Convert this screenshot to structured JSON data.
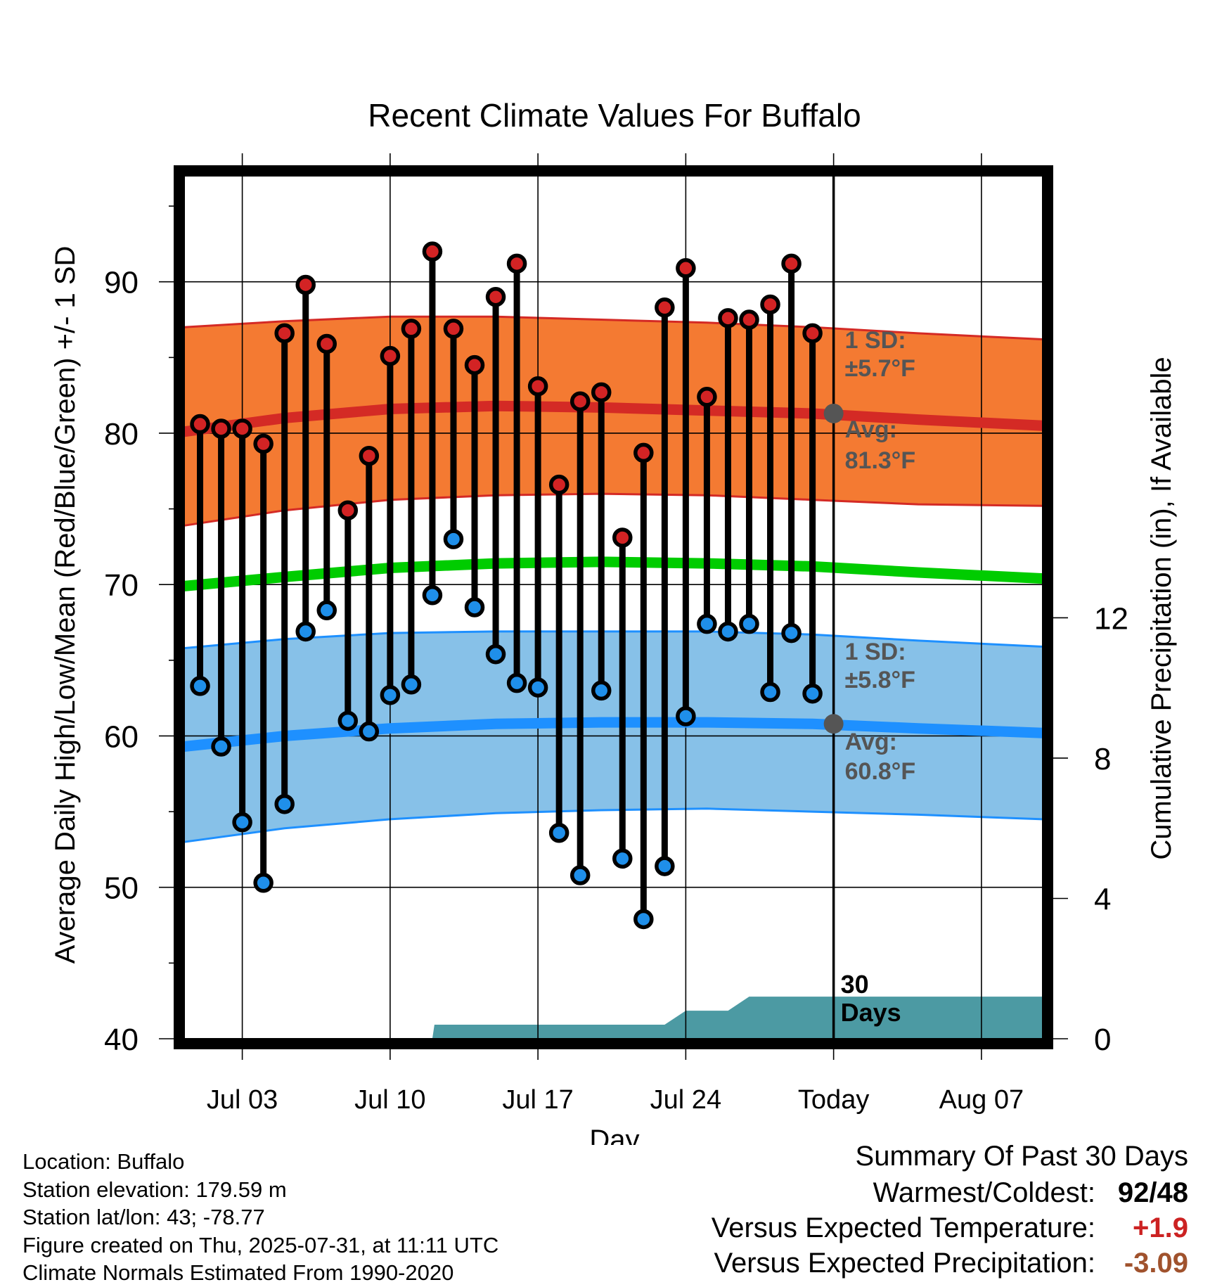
{
  "chart_data": {
    "type": "range",
    "title": "Recent Climate Values For Buffalo",
    "xlabel": "Day",
    "ylabel": "Average Daily High/Low/Mean (Red/Blue/Green) +/- 1 SD",
    "y2label": "Cumulative Precipitation (in), If Available",
    "xticks": [
      "Jul 03",
      "Jul 10",
      "Jul 17",
      "Jul 24",
      "Today",
      "Aug 07"
    ],
    "xtick_days": [
      3,
      10,
      17,
      24,
      31,
      38
    ],
    "xlim_days": [
      0.25,
      40.9
    ],
    "yticks": [
      40,
      50,
      60,
      70,
      80,
      90
    ],
    "ylim": [
      40,
      97
    ],
    "y2ticks": [
      0,
      4,
      8,
      12
    ],
    "y2lim": [
      0,
      24.6
    ],
    "today_day": 31,
    "grid": true,
    "days": [
      1,
      2,
      3,
      4,
      5,
      6,
      7,
      8,
      9,
      10,
      11,
      12,
      13,
      14,
      15,
      16,
      17,
      18,
      19,
      20,
      21,
      22,
      23,
      24,
      25,
      26,
      27,
      28,
      29,
      30
    ],
    "highs": [
      80.6,
      80.3,
      80.3,
      79.3,
      86.6,
      89.8,
      85.9,
      74.9,
      78.5,
      85.1,
      86.9,
      92.0,
      86.9,
      84.5,
      89.0,
      91.2,
      83.1,
      76.6,
      82.1,
      82.7,
      73.1,
      78.7,
      88.3,
      90.9,
      82.4,
      87.6,
      87.5,
      88.5,
      91.2,
      86.6
    ],
    "lows": [
      63.3,
      59.3,
      54.3,
      50.3,
      55.5,
      66.9,
      68.3,
      61.0,
      60.3,
      62.7,
      63.4,
      69.3,
      73.0,
      68.5,
      65.4,
      63.5,
      63.2,
      53.6,
      50.8,
      63.0,
      51.9,
      47.9,
      51.4,
      61.3,
      67.4,
      66.9,
      67.4,
      62.9,
      66.8,
      62.8
    ],
    "normals_x": [
      0.25,
      5,
      10,
      15,
      20,
      25,
      30,
      35,
      40.9
    ],
    "normal_high": [
      80.1,
      81.0,
      81.6,
      81.8,
      81.7,
      81.5,
      81.3,
      80.9,
      80.5
    ],
    "normal_high_sd_lower": [
      73.9,
      74.9,
      75.6,
      75.9,
      76.0,
      75.9,
      75.6,
      75.3,
      75.2
    ],
    "normal_high_sd_upper": [
      87.0,
      87.4,
      87.7,
      87.7,
      87.5,
      87.3,
      87.0,
      86.6,
      86.2
    ],
    "normal_mean": [
      69.9,
      70.5,
      71.1,
      71.4,
      71.5,
      71.4,
      71.2,
      70.8,
      70.4
    ],
    "normal_low": [
      59.3,
      60.0,
      60.5,
      60.8,
      60.9,
      60.9,
      60.8,
      60.5,
      60.2
    ],
    "normal_low_sd_lower": [
      53.0,
      53.9,
      54.5,
      54.9,
      55.1,
      55.2,
      55.0,
      54.8,
      54.5
    ],
    "normal_low_sd_upper": [
      65.8,
      66.4,
      66.8,
      66.9,
      66.9,
      66.9,
      66.7,
      66.3,
      65.9
    ],
    "precip_x": [
      0.25,
      12,
      12.1,
      23,
      24,
      26,
      27,
      40.9
    ],
    "precip_cumulative": [
      0.0,
      0.0,
      0.4,
      0.4,
      0.8,
      0.8,
      1.2,
      1.2
    ],
    "annotations": {
      "high_sd": [
        "1 SD:",
        "±5.7°F"
      ],
      "high_avg": [
        "Avg:",
        "81.3°F"
      ],
      "low_sd": [
        "1 SD:",
        "±5.8°F"
      ],
      "low_avg": [
        "Avg:",
        "60.8°F"
      ],
      "period": [
        "30",
        "Days"
      ],
      "high_avg_value": 81.3,
      "low_avg_value": 60.8
    },
    "colors": {
      "high_band": "#F47A32",
      "high_line": "#D42A25",
      "low_band": "#87C1E8",
      "low_line": "#1E90FF",
      "mean_line": "#00CC00",
      "precip": "#4C9AA3",
      "high_dot": "#D32324",
      "low_dot": "#1F8FEA",
      "annotation": "#555555"
    }
  },
  "footer": {
    "location": "Location: Buffalo",
    "elevation": "Station elevation: 179.59 m",
    "latlon": "Station lat/lon: 43; -78.77",
    "created": "Figure created on Thu, 2025-07-31, at 11:11 UTC",
    "normals": "Climate Normals Estimated From 1990-2020"
  },
  "summary": {
    "title": "Summary Of Past 30 Days",
    "warmest_label": "Warmest/Coldest:",
    "warmest_value": "92",
    "coldest_value": "48",
    "temp_label": "Versus Expected Temperature:",
    "temp_value": "+1.9",
    "temp_color": "#CC2222",
    "precip_label": "Versus Expected Precipitation:",
    "precip_value": "-3.09",
    "precip_color": "#A0522D"
  }
}
